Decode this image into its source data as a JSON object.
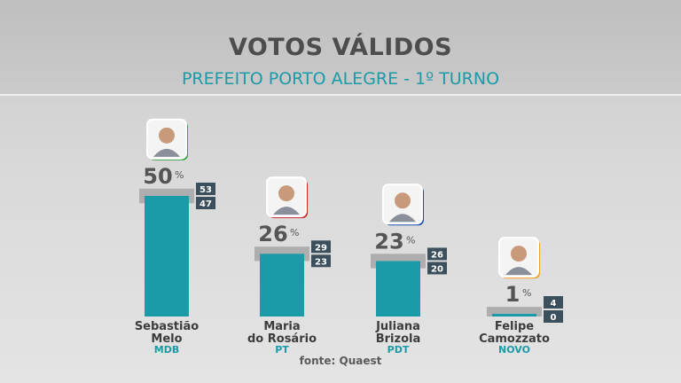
{
  "header": {
    "title": "VOTOS VÁLIDOS",
    "subtitle": "PREFEITO PORTO ALEGRE - 1º TURNO"
  },
  "source": "fonte: Quaest",
  "colors": {
    "bar": "#1b9aa8",
    "range_band": "#a9a9a9",
    "range_box": "#3b4f5c",
    "party_label": "#1b9aa8"
  },
  "chart_data": {
    "type": "bar",
    "categories": [
      "Sebastião Melo",
      "Maria do Rosário",
      "Juliana Brizola",
      "Felipe Camozzato"
    ],
    "name_lines": [
      [
        "Sebastião",
        "Melo"
      ],
      [
        "Maria",
        "do Rosário"
      ],
      [
        "Juliana",
        "Brizola"
      ],
      [
        "Felipe",
        "Camozzato"
      ]
    ],
    "parties": [
      "MDB",
      "PT",
      "PDT",
      "NOVO"
    ],
    "values": [
      50,
      26,
      23,
      1
    ],
    "ranges": [
      [
        47,
        53
      ],
      [
        23,
        29
      ],
      [
        20,
        26
      ],
      [
        0,
        4
      ]
    ],
    "percent_symbol": "%",
    "photo_accents": [
      "#3aa64a",
      "#c92a2a",
      "#1e4fa8",
      "#f0a020"
    ],
    "photo_icon": "person-photo-icon",
    "ylim": [
      0,
      53
    ]
  }
}
